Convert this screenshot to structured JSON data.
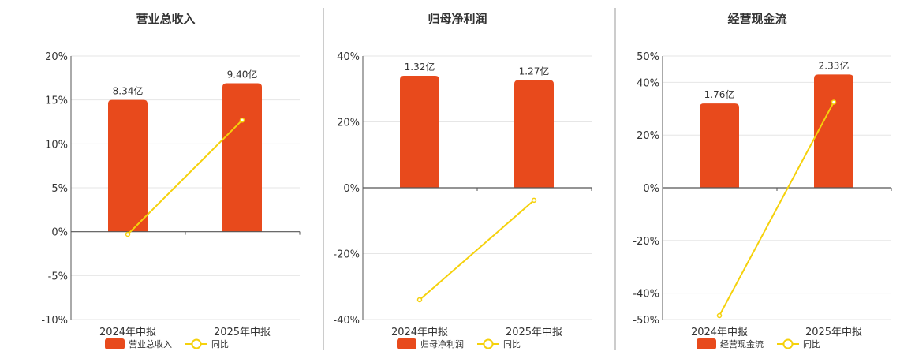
{
  "colors": {
    "bar": "#E84A1C",
    "line": "#F5D10C",
    "grid": "#E6E6E6",
    "axis": "#555555",
    "text": "#333333",
    "divider": "#999999"
  },
  "legend": {
    "yoy_label": "同比"
  },
  "chart_data": [
    {
      "type": "bar",
      "title": "营业总收入",
      "categories": [
        "2024年中报",
        "2025年中报"
      ],
      "series": [
        {
          "name": "营业总收入",
          "type": "bar",
          "values": [
            8.34,
            9.4
          ],
          "labels": [
            "8.34亿",
            "9.40亿"
          ],
          "unit": "亿"
        },
        {
          "name": "同比",
          "type": "line",
          "values": [
            -0.3,
            12.7
          ],
          "unit": "%"
        }
      ],
      "yaxis": {
        "ticks": [
          20,
          15,
          10,
          5,
          0,
          -5,
          -10
        ],
        "tick_labels": [
          "20%",
          "15%",
          "10%",
          "5%",
          "0%",
          "-5%",
          "-10%"
        ],
        "ylim": [
          -10,
          20
        ]
      },
      "bar_pct_equivalent": [
        15.0,
        16.9
      ],
      "grid": true,
      "legend_position": "bottom"
    },
    {
      "type": "bar",
      "title": "归母净利润",
      "categories": [
        "2024年中报",
        "2025年中报"
      ],
      "series": [
        {
          "name": "归母净利润",
          "type": "bar",
          "values": [
            1.32,
            1.27
          ],
          "labels": [
            "1.32亿",
            "1.27亿"
          ],
          "unit": "亿"
        },
        {
          "name": "同比",
          "type": "line",
          "values": [
            -34.0,
            -3.8
          ],
          "unit": "%"
        }
      ],
      "yaxis": {
        "ticks": [
          40,
          20,
          0,
          -20,
          -40
        ],
        "tick_labels": [
          "40%",
          "20%",
          "0%",
          "-20%",
          "-40%"
        ],
        "ylim": [
          -40,
          40
        ]
      },
      "bar_pct_equivalent": [
        34.0,
        32.7
      ],
      "grid": true,
      "legend_position": "bottom"
    },
    {
      "type": "bar",
      "title": "经营现金流",
      "categories": [
        "2024年中报",
        "2025年中报"
      ],
      "series": [
        {
          "name": "经营现金流",
          "type": "bar",
          "values": [
            1.76,
            2.33
          ],
          "labels": [
            "1.76亿",
            "2.33亿"
          ],
          "unit": "亿"
        },
        {
          "name": "同比",
          "type": "line",
          "values": [
            -48.5,
            32.5
          ],
          "unit": "%"
        }
      ],
      "yaxis": {
        "ticks": [
          50,
          40,
          20,
          0,
          -20,
          -40,
          -50
        ],
        "tick_labels": [
          "50%",
          "40%",
          "20%",
          "0%",
          "-20%",
          "-40%",
          "-50%"
        ],
        "ylim": [
          -50,
          50
        ]
      },
      "bar_pct_equivalent": [
        32.0,
        43.0
      ],
      "grid": true,
      "legend_position": "bottom"
    }
  ]
}
